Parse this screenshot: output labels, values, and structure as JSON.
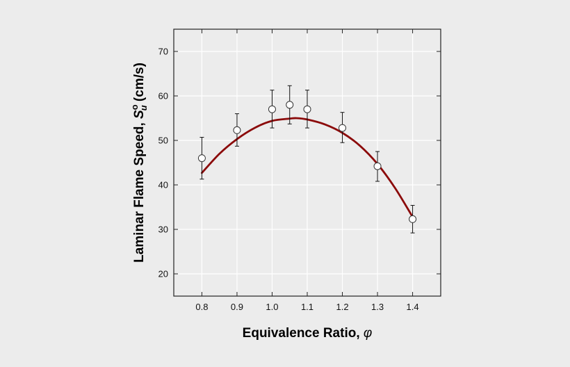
{
  "chart_data": {
    "type": "scatter",
    "xlabel": {
      "prefix": "Equivalence Ratio, ",
      "symbol": "φ"
    },
    "ylabel": {
      "prefix": "Laminar Flame Speed, ",
      "symbol": "S",
      "subscript": "u",
      "superscript": "o",
      "suffix": " (cm/s)"
    },
    "xlim": [
      0.72,
      1.48
    ],
    "ylim": [
      15,
      75
    ],
    "x_ticks": [
      "0.8",
      "0.9",
      "1.0",
      "1.1",
      "1.2",
      "1.3",
      "1.4"
    ],
    "y_ticks": [
      "20",
      "30",
      "40",
      "50",
      "60",
      "70"
    ],
    "grid": true,
    "legend": "none",
    "series": [
      {
        "kind": "points-with-error-bars",
        "marker": "open-circle",
        "x": [
          0.8,
          0.9,
          1.0,
          1.05,
          1.1,
          1.2,
          1.3,
          1.4
        ],
        "y": [
          46.0,
          52.3,
          57.0,
          58.0,
          57.0,
          52.8,
          44.2,
          32.3
        ],
        "err_low": [
          41.3,
          48.7,
          52.8,
          53.7,
          52.8,
          49.5,
          40.8,
          29.2
        ],
        "err_high": [
          50.7,
          56.0,
          61.3,
          62.3,
          61.3,
          56.3,
          47.5,
          35.4
        ]
      },
      {
        "kind": "fit-curve",
        "color": "#8b0a0a",
        "x": [
          0.8,
          0.85,
          0.9,
          0.95,
          1.0,
          1.05,
          1.07,
          1.1,
          1.15,
          1.2,
          1.25,
          1.3,
          1.35,
          1.4
        ],
        "y": [
          42.7,
          47.0,
          50.3,
          52.8,
          54.4,
          54.9,
          55.0,
          54.7,
          53.6,
          51.7,
          48.8,
          44.7,
          39.3,
          32.8
        ]
      }
    ],
    "colors": {
      "background": "#ececec",
      "frame": "#222222",
      "grid": "#ffffff",
      "fit_line": "#8b0a0a",
      "marker_fill": "#ffffff",
      "marker_edge": "#333333"
    }
  }
}
